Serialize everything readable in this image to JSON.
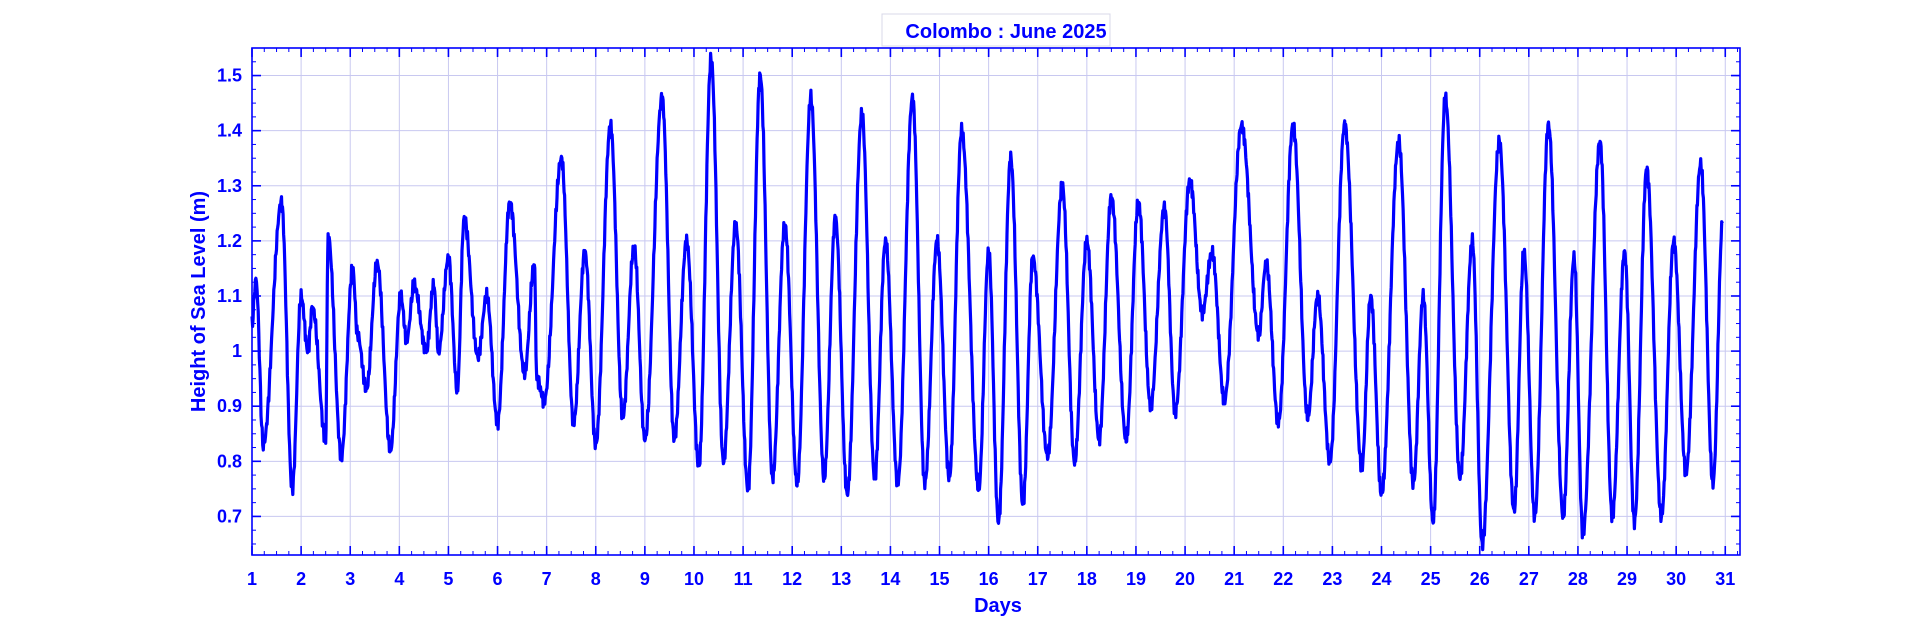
{
  "chart_data": {
    "type": "line",
    "title": "Colombo : June 2025",
    "xlabel": "Days",
    "ylabel": "Height of Sea Level (m)",
    "xlim": [
      1,
      31.3
    ],
    "ylim": [
      0.63,
      1.55
    ],
    "xticks": [
      1,
      2,
      3,
      4,
      5,
      6,
      7,
      8,
      9,
      10,
      11,
      12,
      13,
      14,
      15,
      16,
      17,
      18,
      19,
      20,
      21,
      22,
      23,
      24,
      25,
      26,
      27,
      28,
      29,
      30,
      31
    ],
    "yticks": [
      0.7,
      0.8,
      0.9,
      1,
      1.1,
      1.2,
      1.3,
      1.4,
      1.5
    ],
    "ytick_labels": [
      "0.7",
      "0.8",
      "0.9",
      "1",
      "1.1",
      "1.2",
      "1.3",
      "1.4",
      "1.5"
    ],
    "grid": true,
    "color": "#0000FF",
    "series": [
      {
        "extrema": [
          [
            1.0,
            1.05
          ],
          [
            1.08,
            1.13
          ],
          [
            1.23,
            0.83
          ],
          [
            1.6,
            1.27
          ],
          [
            1.82,
            0.75
          ],
          [
            2.0,
            1.1
          ],
          [
            2.14,
            1.0
          ],
          [
            2.23,
            1.08
          ],
          [
            2.5,
            0.84
          ],
          [
            2.55,
            1.21
          ],
          [
            2.82,
            0.81
          ],
          [
            3.05,
            1.15
          ],
          [
            3.15,
            1.03
          ],
          [
            3.33,
            0.93
          ],
          [
            3.55,
            1.16
          ],
          [
            3.82,
            0.82
          ],
          [
            4.03,
            1.1
          ],
          [
            4.15,
            1.02
          ],
          [
            4.3,
            1.12
          ],
          [
            4.55,
            1.0
          ],
          [
            4.7,
            1.12
          ],
          [
            4.8,
            1.0
          ],
          [
            5.0,
            1.17
          ],
          [
            5.18,
            0.93
          ],
          [
            5.32,
            1.24
          ],
          [
            5.6,
            0.99
          ],
          [
            5.78,
            1.1
          ],
          [
            6.0,
            0.87
          ],
          [
            6.25,
            1.27
          ],
          [
            6.55,
            0.96
          ],
          [
            6.75,
            1.16
          ],
          [
            6.8,
            0.95
          ],
          [
            6.95,
            0.91
          ],
          [
            7.3,
            1.35
          ],
          [
            7.55,
            0.87
          ],
          [
            7.78,
            1.18
          ],
          [
            8.0,
            0.83
          ],
          [
            8.3,
            1.41
          ],
          [
            8.55,
            0.88
          ],
          [
            8.78,
            1.19
          ],
          [
            9.0,
            0.84
          ],
          [
            9.35,
            1.46
          ],
          [
            9.6,
            0.84
          ],
          [
            9.85,
            1.2
          ],
          [
            10.1,
            0.79
          ],
          [
            10.35,
            1.53
          ],
          [
            10.6,
            0.8
          ],
          [
            10.85,
            1.23
          ],
          [
            11.1,
            0.75
          ],
          [
            11.35,
            1.5
          ],
          [
            11.6,
            0.77
          ],
          [
            11.85,
            1.23
          ],
          [
            12.1,
            0.76
          ],
          [
            12.38,
            1.46
          ],
          [
            12.65,
            0.77
          ],
          [
            12.88,
            1.24
          ],
          [
            13.12,
            0.74
          ],
          [
            13.42,
            1.43
          ],
          [
            13.68,
            0.77
          ],
          [
            13.9,
            1.2
          ],
          [
            14.15,
            0.76
          ],
          [
            14.45,
            1.46
          ],
          [
            14.7,
            0.76
          ],
          [
            14.95,
            1.2
          ],
          [
            15.2,
            0.77
          ],
          [
            15.45,
            1.4
          ],
          [
            15.8,
            0.75
          ],
          [
            16.0,
            1.18
          ],
          [
            16.2,
            0.69
          ],
          [
            16.45,
            1.35
          ],
          [
            16.7,
            0.72
          ],
          [
            16.9,
            1.17
          ],
          [
            17.2,
            0.81
          ],
          [
            17.5,
            1.3
          ],
          [
            17.75,
            0.8
          ],
          [
            18.0,
            1.2
          ],
          [
            18.25,
            0.84
          ],
          [
            18.5,
            1.28
          ],
          [
            18.8,
            0.84
          ],
          [
            19.05,
            1.27
          ],
          [
            19.3,
            0.9
          ],
          [
            19.58,
            1.26
          ],
          [
            19.8,
            0.89
          ],
          [
            20.1,
            1.31
          ],
          [
            20.35,
            1.07
          ],
          [
            20.55,
            1.18
          ],
          [
            20.8,
            0.91
          ],
          [
            21.15,
            1.41
          ],
          [
            21.5,
            1.03
          ],
          [
            21.65,
            1.16
          ],
          [
            21.9,
            0.87
          ],
          [
            22.2,
            1.41
          ],
          [
            22.5,
            0.88
          ],
          [
            22.7,
            1.1
          ],
          [
            22.95,
            0.8
          ],
          [
            23.25,
            1.41
          ],
          [
            23.6,
            0.79
          ],
          [
            23.78,
            1.1
          ],
          [
            24.0,
            0.74
          ],
          [
            24.35,
            1.38
          ],
          [
            24.65,
            0.76
          ],
          [
            24.85,
            1.1
          ],
          [
            25.05,
            0.69
          ],
          [
            25.3,
            1.46
          ],
          [
            25.6,
            0.77
          ],
          [
            25.85,
            1.2
          ],
          [
            26.05,
            0.65
          ],
          [
            26.4,
            1.38
          ],
          [
            26.7,
            0.71
          ],
          [
            26.9,
            1.18
          ],
          [
            27.12,
            0.7
          ],
          [
            27.4,
            1.41
          ],
          [
            27.7,
            0.7
          ],
          [
            27.92,
            1.17
          ],
          [
            28.1,
            0.67
          ],
          [
            28.45,
            1.38
          ],
          [
            28.7,
            0.7
          ],
          [
            28.95,
            1.18
          ],
          [
            29.15,
            0.69
          ],
          [
            29.4,
            1.33
          ],
          [
            29.7,
            0.7
          ],
          [
            29.95,
            1.2
          ],
          [
            30.2,
            0.78
          ],
          [
            30.5,
            1.34
          ],
          [
            30.75,
            0.76
          ],
          [
            30.95,
            1.24
          ]
        ]
      }
    ]
  }
}
